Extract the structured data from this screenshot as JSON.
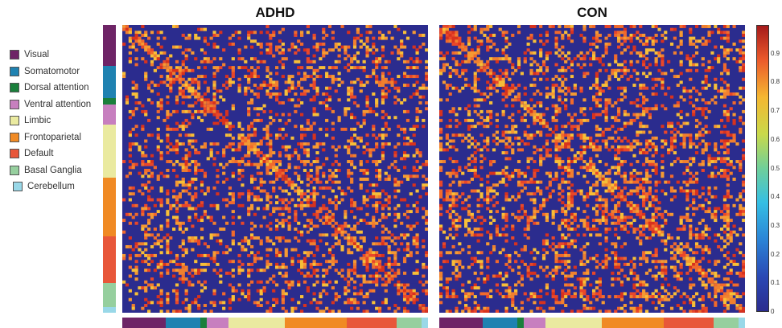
{
  "legend": {
    "items": [
      {
        "label": "Visual",
        "color": "#6e2466"
      },
      {
        "label": "Somatomotor",
        "color": "#1f82b1"
      },
      {
        "label": "Dorsal attention",
        "color": "#1a7f3b"
      },
      {
        "label": "Ventral attention",
        "color": "#c77fbf"
      },
      {
        "label": "Limbic",
        "color": "#eaeaa0"
      },
      {
        "label": "Frontoparietal",
        "color": "#f08a24"
      },
      {
        "label": "Default",
        "color": "#e8573a"
      },
      {
        "label": "Basal Ganglia",
        "color": "#96cf9e"
      },
      {
        "label": "Cerebellum",
        "color": "#99d8e8"
      }
    ]
  },
  "network_blocks": [
    {
      "name": "Visual",
      "size": 14
    },
    {
      "name": "Somatomotor",
      "size": 11
    },
    {
      "name": "Dorsal attention",
      "size": 2
    },
    {
      "name": "Ventral attention",
      "size": 7
    },
    {
      "name": "Limbic",
      "size": 18
    },
    {
      "name": "Frontoparietal",
      "size": 20
    },
    {
      "name": "Default",
      "size": 16
    },
    {
      "name": "Basal Ganglia",
      "size": 8
    },
    {
      "name": "Cerebellum",
      "size": 2
    }
  ],
  "chart_data": [
    {
      "type": "heatmap",
      "title": "ADHD",
      "size": 98,
      "density": 0.36,
      "value_range": [
        0,
        1
      ]
    },
    {
      "type": "heatmap",
      "title": "CON",
      "size": 98,
      "density": 0.44,
      "value_range": [
        0,
        1
      ]
    }
  ],
  "colorbar": {
    "ticks": [
      "0.9",
      "0.8",
      "0.7",
      "0.6",
      "0.5",
      "0.4",
      "0.3",
      "0.2",
      "0.1",
      "0"
    ],
    "tick_values": [
      0.9,
      0.8,
      0.7,
      0.6,
      0.5,
      0.4,
      0.3,
      0.2,
      0.1,
      0
    ],
    "colors": [
      "#2b2c8e",
      "#a51a1b"
    ]
  },
  "colors": {
    "background_cell": "#2b2c8e",
    "hot_palette": [
      "#e9472a",
      "#f16a2c",
      "#f59a33",
      "#f7bf38",
      "#d8321e",
      "#f0802f"
    ]
  }
}
